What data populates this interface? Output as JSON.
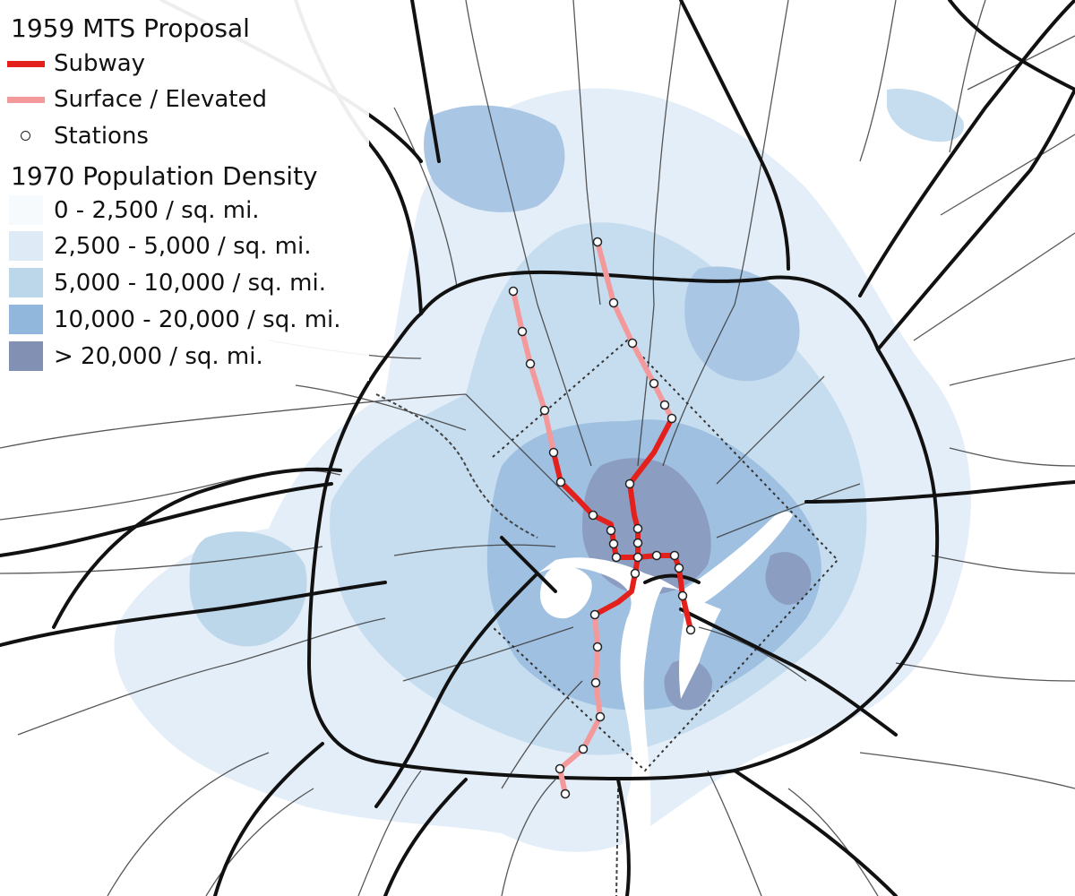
{
  "legend": {
    "proposal_title": "1959 MTS Proposal",
    "lines": [
      {
        "label": "Subway",
        "color": "#e3201b"
      },
      {
        "label": "Surface / Elevated",
        "color": "#f4999b"
      }
    ],
    "stations_label": "Stations",
    "density_title": "1970 Population Density",
    "density_classes": [
      {
        "label": "0 - 2,500 / sq. mi.",
        "color": "#f7fafd"
      },
      {
        "label": "2,500 - 5,000 / sq. mi.",
        "color": "#deebf7"
      },
      {
        "label": "5,000 - 10,000 / sq. mi.",
        "color": "#bcd7ea"
      },
      {
        "label": "10,000 - 20,000 / sq. mi.",
        "color": "#92b7dc"
      },
      {
        "label": "> 20,000 / sq. mi.",
        "color": "#8291b3"
      }
    ]
  },
  "colors": {
    "road": "#111111",
    "minor_road": "#3a3a3a",
    "water": "#ffffff",
    "district_boundary": "#333333"
  }
}
